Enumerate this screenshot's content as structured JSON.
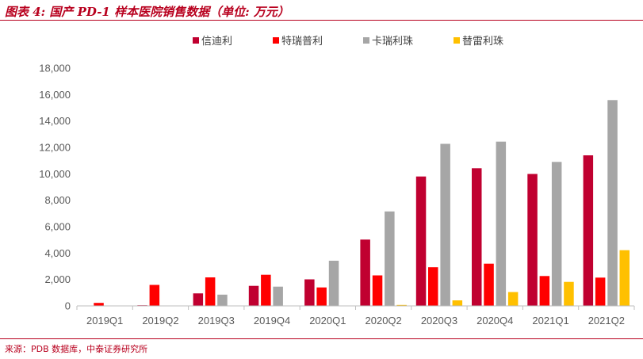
{
  "header": {
    "title": "图表 4: 国产 PD-1 样本医院销售数据（单位: 万元）"
  },
  "footer": {
    "source": "来源：PDB 数据库，中泰证券研究所"
  },
  "chart_data": {
    "type": "bar",
    "categories": [
      "2019Q1",
      "2019Q2",
      "2019Q3",
      "2019Q4",
      "2020Q1",
      "2020Q2",
      "2020Q3",
      "2020Q4",
      "2021Q1",
      "2021Q2"
    ],
    "series": [
      {
        "name": "信迪利",
        "color": "#c00030",
        "values": [
          0,
          50,
          950,
          1520,
          2010,
          5020,
          9800,
          10420,
          9990,
          11400
        ]
      },
      {
        "name": "特瑞普利",
        "color": "#ff0000",
        "values": [
          230,
          1590,
          2160,
          2360,
          1400,
          2310,
          2930,
          3200,
          2260,
          2140
        ]
      },
      {
        "name": "卡瑞利珠",
        "color": "#a6a6a6",
        "values": [
          0,
          0,
          850,
          1460,
          3420,
          7150,
          12270,
          12440,
          10900,
          15580
        ]
      },
      {
        "name": "替雷利珠",
        "color": "#ffc000",
        "values": [
          0,
          0,
          0,
          0,
          0,
          70,
          420,
          1050,
          1820,
          4220
        ]
      }
    ],
    "ylim": [
      0,
      18000
    ],
    "yticks": [
      "0",
      "2,000",
      "4,000",
      "6,000",
      "8,000",
      "10,000",
      "12,000",
      "14,000",
      "16,000",
      "18,000"
    ],
    "legend_position": "top-center",
    "grid": false
  }
}
